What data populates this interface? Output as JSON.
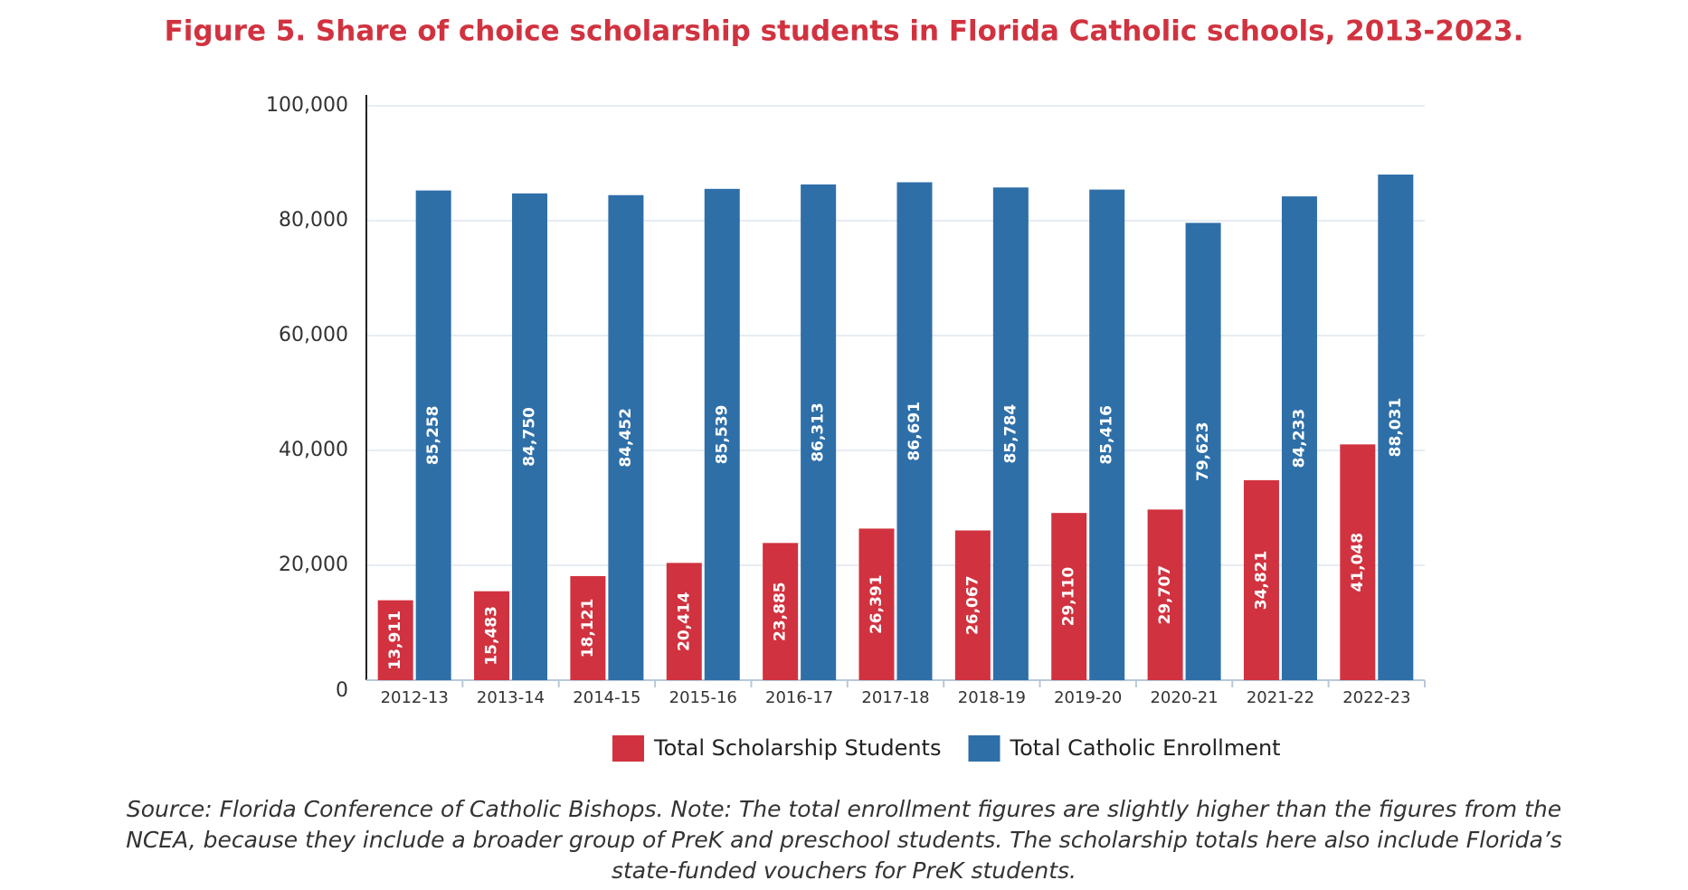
{
  "chart_data": {
    "type": "bar",
    "title": "Figure 5. Share of choice scholarship students in Florida Catholic schools, 2013-2023.",
    "categories": [
      "2012-13",
      "2013-14",
      "2014-15",
      "2015-16",
      "2016-17",
      "2017-18",
      "2018-19",
      "2019-20",
      "2020-21",
      "2021-22",
      "2022-23"
    ],
    "series": [
      {
        "name": "Total Scholarship Students",
        "color": "#d1323f",
        "values": [
          13911,
          15483,
          18121,
          20414,
          23885,
          26391,
          26067,
          29110,
          29707,
          34821,
          41048
        ],
        "value_labels": [
          "13,911",
          "15,483",
          "18,121",
          "20,414",
          "23,885",
          "26,391",
          "26,067",
          "29,110",
          "29,707",
          "34,821",
          "41,048"
        ]
      },
      {
        "name": "Total Catholic Enrollment",
        "color": "#2e6fa8",
        "values": [
          85258,
          84750,
          84452,
          85539,
          86313,
          86691,
          85784,
          85416,
          79623,
          84233,
          88031
        ],
        "value_labels": [
          "85,258",
          "84,750",
          "84,452",
          "85,539",
          "86,313",
          "86,691",
          "85,784",
          "85,416",
          "79,623",
          "84,233",
          "88,031"
        ]
      }
    ],
    "ylim": [
      0,
      100000
    ],
    "yticks": [
      0,
      {
        "value": 20000,
        "label": "20,000"
      },
      {
        "value": 40000,
        "label": "40,000"
      },
      {
        "value": 60000,
        "label": "60,000"
      },
      {
        "value": 80000,
        "label": "80,000"
      },
      {
        "value": 100000,
        "label": "100,000"
      }
    ],
    "grid": true,
    "legend": "bottom",
    "source": "Source: Florida Conference of Catholic Bishops. Note: The total enrollment figures are slightly higher than the figures from the NCEA, because they include a broader group of PreK and preschool students. The scholarship totals here also include Florida’s state-funded vouchers for PreK students."
  }
}
